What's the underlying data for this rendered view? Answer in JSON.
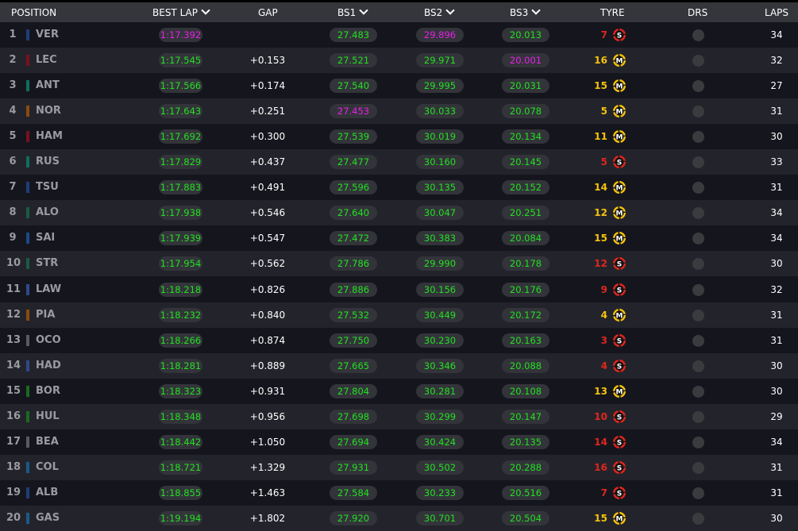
{
  "header": {
    "position": "POSITION",
    "best_lap": "BEST LAP",
    "gap": "GAP",
    "bs1": "BS1",
    "bs2": "BS2",
    "bs3": "BS3",
    "tyre": "TYRE",
    "drs": "DRS",
    "laps": "LAPS"
  },
  "colors": {
    "green": "#22e021",
    "purple": "#e81fe8",
    "soft": "#e0261e",
    "medium": "#f4c20d"
  },
  "rows": [
    {
      "pos": "1",
      "code": "VER",
      "team": "#1f3d7a",
      "best": "1:17.392",
      "best_c": "purple",
      "gap": "",
      "bs1": "27.483",
      "bs1_c": "green",
      "bs2": "29.896",
      "bs2_c": "purple",
      "bs3": "20.013",
      "bs3_c": "green",
      "tyre": "S",
      "tyre_laps": "7",
      "laps": "34"
    },
    {
      "pos": "2",
      "code": "LEC",
      "team": "#7a1020",
      "best": "1:17.545",
      "best_c": "green",
      "gap": "+0.153",
      "bs1": "27.521",
      "bs1_c": "green",
      "bs2": "29.971",
      "bs2_c": "green",
      "bs3": "20.001",
      "bs3_c": "purple",
      "tyre": "M",
      "tyre_laps": "16",
      "laps": "32"
    },
    {
      "pos": "3",
      "code": "ANT",
      "team": "#0f6e5e",
      "best": "1:17.566",
      "best_c": "green",
      "gap": "+0.174",
      "bs1": "27.540",
      "bs1_c": "green",
      "bs2": "29.995",
      "bs2_c": "green",
      "bs3": "20.031",
      "bs3_c": "green",
      "tyre": "M",
      "tyre_laps": "15",
      "laps": "27"
    },
    {
      "pos": "4",
      "code": "NOR",
      "team": "#8a4a10",
      "best": "1:17.643",
      "best_c": "green",
      "gap": "+0.251",
      "bs1": "27.453",
      "bs1_c": "purple",
      "bs2": "30.033",
      "bs2_c": "green",
      "bs3": "20.078",
      "bs3_c": "green",
      "tyre": "M",
      "tyre_laps": "5",
      "laps": "31"
    },
    {
      "pos": "5",
      "code": "HAM",
      "team": "#7a1020",
      "best": "1:17.692",
      "best_c": "green",
      "gap": "+0.300",
      "bs1": "27.539",
      "bs1_c": "green",
      "bs2": "30.019",
      "bs2_c": "green",
      "bs3": "20.134",
      "bs3_c": "green",
      "tyre": "M",
      "tyre_laps": "11",
      "laps": "30"
    },
    {
      "pos": "6",
      "code": "RUS",
      "team": "#0f6e5e",
      "best": "1:17.829",
      "best_c": "green",
      "gap": "+0.437",
      "bs1": "27.477",
      "bs1_c": "green",
      "bs2": "30.160",
      "bs2_c": "green",
      "bs3": "20.145",
      "bs3_c": "green",
      "tyre": "S",
      "tyre_laps": "5",
      "laps": "33"
    },
    {
      "pos": "7",
      "code": "TSU",
      "team": "#1f3d7a",
      "best": "1:17.883",
      "best_c": "green",
      "gap": "+0.491",
      "bs1": "27.596",
      "bs1_c": "green",
      "bs2": "30.135",
      "bs2_c": "green",
      "bs3": "20.152",
      "bs3_c": "green",
      "tyre": "M",
      "tyre_laps": "14",
      "laps": "31"
    },
    {
      "pos": "8",
      "code": "ALO",
      "team": "#1a5a44",
      "best": "1:17.938",
      "best_c": "green",
      "gap": "+0.546",
      "bs1": "27.640",
      "bs1_c": "green",
      "bs2": "30.047",
      "bs2_c": "green",
      "bs3": "20.251",
      "bs3_c": "green",
      "tyre": "M",
      "tyre_laps": "12",
      "laps": "34"
    },
    {
      "pos": "9",
      "code": "SAI",
      "team": "#1a4a8a",
      "best": "1:17.939",
      "best_c": "green",
      "gap": "+0.547",
      "bs1": "27.472",
      "bs1_c": "green",
      "bs2": "30.383",
      "bs2_c": "green",
      "bs3": "20.084",
      "bs3_c": "green",
      "tyre": "M",
      "tyre_laps": "15",
      "laps": "34"
    },
    {
      "pos": "10",
      "code": "STR",
      "team": "#1a5a44",
      "best": "1:17.954",
      "best_c": "green",
      "gap": "+0.562",
      "bs1": "27.786",
      "bs1_c": "green",
      "bs2": "29.990",
      "bs2_c": "green",
      "bs3": "20.178",
      "bs3_c": "green",
      "tyre": "S",
      "tyre_laps": "12",
      "laps": "30"
    },
    {
      "pos": "11",
      "code": "LAW",
      "team": "#2d4a8a",
      "best": "1:18.218",
      "best_c": "green",
      "gap": "+0.826",
      "bs1": "27.886",
      "bs1_c": "green",
      "bs2": "30.156",
      "bs2_c": "green",
      "bs3": "20.176",
      "bs3_c": "green",
      "tyre": "S",
      "tyre_laps": "9",
      "laps": "32"
    },
    {
      "pos": "12",
      "code": "PIA",
      "team": "#8a4a10",
      "best": "1:18.232",
      "best_c": "green",
      "gap": "+0.840",
      "bs1": "27.532",
      "bs1_c": "green",
      "bs2": "30.449",
      "bs2_c": "green",
      "bs3": "20.172",
      "bs3_c": "green",
      "tyre": "M",
      "tyre_laps": "4",
      "laps": "31"
    },
    {
      "pos": "13",
      "code": "OCO",
      "team": "#5a5b60",
      "best": "1:18.266",
      "best_c": "green",
      "gap": "+0.874",
      "bs1": "27.750",
      "bs1_c": "green",
      "bs2": "30.230",
      "bs2_c": "green",
      "bs3": "20.163",
      "bs3_c": "green",
      "tyre": "S",
      "tyre_laps": "3",
      "laps": "31"
    },
    {
      "pos": "14",
      "code": "HAD",
      "team": "#2d4a8a",
      "best": "1:18.281",
      "best_c": "green",
      "gap": "+0.889",
      "bs1": "27.665",
      "bs1_c": "green",
      "bs2": "30.346",
      "bs2_c": "green",
      "bs3": "20.088",
      "bs3_c": "green",
      "tyre": "S",
      "tyre_laps": "4",
      "laps": "30"
    },
    {
      "pos": "15",
      "code": "BOR",
      "team": "#1a6a20",
      "best": "1:18.323",
      "best_c": "green",
      "gap": "+0.931",
      "bs1": "27.804",
      "bs1_c": "green",
      "bs2": "30.281",
      "bs2_c": "green",
      "bs3": "20.108",
      "bs3_c": "green",
      "tyre": "M",
      "tyre_laps": "13",
      "laps": "30"
    },
    {
      "pos": "16",
      "code": "HUL",
      "team": "#1a6a20",
      "best": "1:18.348",
      "best_c": "green",
      "gap": "+0.956",
      "bs1": "27.698",
      "bs1_c": "green",
      "bs2": "30.299",
      "bs2_c": "green",
      "bs3": "20.147",
      "bs3_c": "green",
      "tyre": "S",
      "tyre_laps": "10",
      "laps": "29"
    },
    {
      "pos": "17",
      "code": "BEA",
      "team": "#5a5b60",
      "best": "1:18.442",
      "best_c": "green",
      "gap": "+1.050",
      "bs1": "27.694",
      "bs1_c": "green",
      "bs2": "30.424",
      "bs2_c": "green",
      "bs3": "20.135",
      "bs3_c": "green",
      "tyre": "S",
      "tyre_laps": "14",
      "laps": "34"
    },
    {
      "pos": "18",
      "code": "COL",
      "team": "#1a5a8a",
      "best": "1:18.721",
      "best_c": "green",
      "gap": "+1.329",
      "bs1": "27.931",
      "bs1_c": "green",
      "bs2": "30.502",
      "bs2_c": "green",
      "bs3": "20.288",
      "bs3_c": "green",
      "tyre": "S",
      "tyre_laps": "16",
      "laps": "31"
    },
    {
      "pos": "19",
      "code": "ALB",
      "team": "#1f3d7a",
      "best": "1:18.855",
      "best_c": "green",
      "gap": "+1.463",
      "bs1": "27.584",
      "bs1_c": "green",
      "bs2": "30.233",
      "bs2_c": "green",
      "bs3": "20.516",
      "bs3_c": "green",
      "tyre": "S",
      "tyre_laps": "7",
      "laps": "31"
    },
    {
      "pos": "20",
      "code": "GAS",
      "team": "#1a5a8a",
      "best": "1:19.194",
      "best_c": "green",
      "gap": "+1.802",
      "bs1": "27.920",
      "bs1_c": "green",
      "bs2": "30.701",
      "bs2_c": "green",
      "bs3": "20.504",
      "bs3_c": "green",
      "tyre": "M",
      "tyre_laps": "15",
      "laps": "30"
    }
  ]
}
